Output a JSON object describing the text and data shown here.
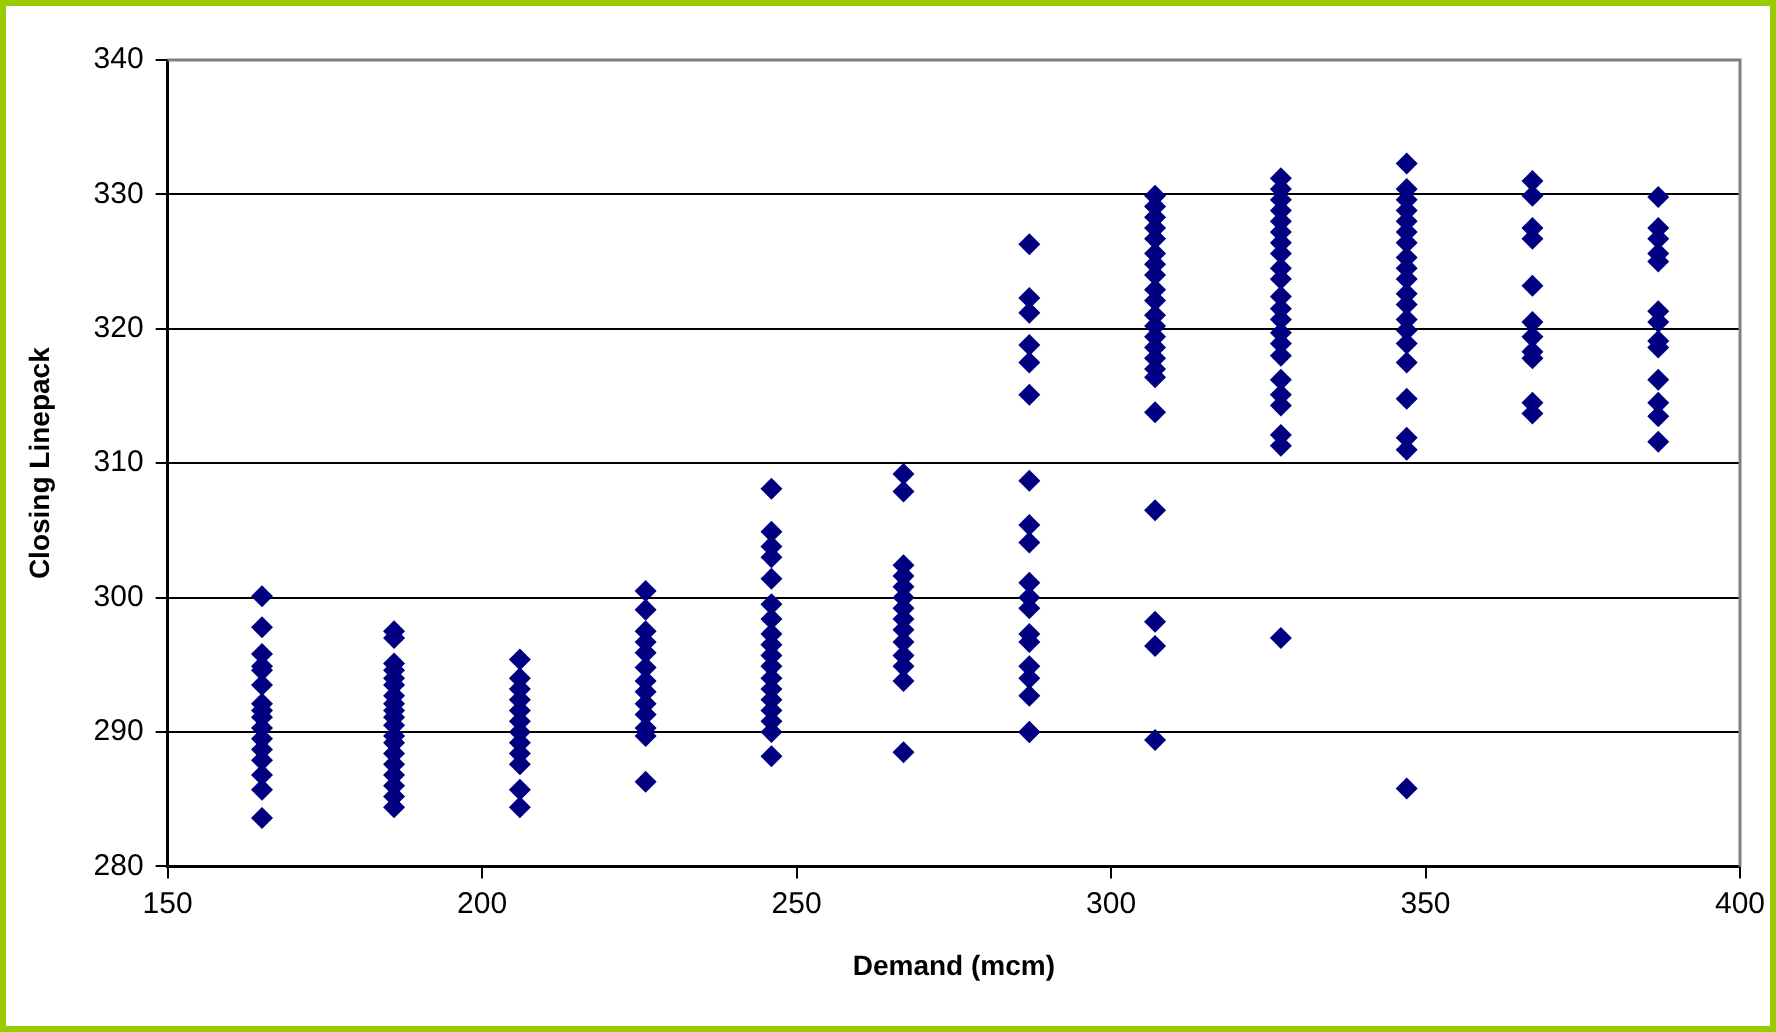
{
  "chart_data": {
    "type": "scatter",
    "xlabel": "Demand (mcm)",
    "ylabel": "Closing Linepack",
    "xlim": [
      150,
      400
    ],
    "xticks": [
      150,
      200,
      250,
      300,
      350,
      400
    ],
    "ylim": [
      280,
      340
    ],
    "yticks": [
      280,
      290,
      300,
      310,
      320,
      330,
      340
    ],
    "grid": "y",
    "legend": false,
    "marker": "diamond",
    "series": [
      {
        "color": "#000080",
        "x": [
          165,
          165,
          165,
          165,
          165,
          165,
          165,
          165,
          165,
          165,
          165,
          165,
          165,
          165,
          165,
          165,
          186,
          186,
          186,
          186,
          186,
          186,
          186,
          186,
          186,
          186,
          186,
          186,
          186,
          186,
          186,
          186,
          186,
          186,
          186,
          206,
          206,
          206,
          206,
          206,
          206,
          206,
          206,
          206,
          206,
          206,
          206,
          226,
          226,
          226,
          226,
          226,
          226,
          226,
          226,
          226,
          226,
          226,
          226,
          226,
          246,
          246,
          246,
          246,
          246,
          246,
          246,
          246,
          246,
          246,
          246,
          246,
          246,
          246,
          246,
          246,
          246,
          246,
          267,
          267,
          267,
          267,
          267,
          267,
          267,
          267,
          267,
          267,
          267,
          267,
          267,
          267,
          287,
          287,
          287,
          287,
          287,
          287,
          287,
          287,
          287,
          287,
          287,
          287,
          287,
          287,
          287,
          287,
          287,
          287,
          287,
          307,
          307,
          307,
          307,
          307,
          307,
          307,
          307,
          307,
          307,
          307,
          307,
          307,
          307,
          307,
          307,
          307,
          307,
          307,
          307,
          307,
          307,
          327,
          327,
          327,
          327,
          327,
          327,
          327,
          327,
          327,
          327,
          327,
          327,
          327,
          327,
          327,
          327,
          327,
          327,
          327,
          327,
          327,
          327,
          347,
          347,
          347,
          347,
          347,
          347,
          347,
          347,
          347,
          347,
          347,
          347,
          347,
          347,
          347,
          347,
          347,
          347,
          347,
          347,
          367,
          367,
          367,
          367,
          367,
          367,
          367,
          367,
          367,
          367,
          367,
          387,
          387,
          387,
          387,
          387,
          387,
          387,
          387,
          387,
          387,
          387,
          387,
          387
        ],
        "values": [
          300.1,
          297.8,
          295.8,
          294.9,
          294.6,
          293.5,
          292.1,
          291.6,
          291.1,
          290.3,
          289.5,
          288.7,
          287.9,
          286.8,
          285.7,
          283.6,
          297.5,
          297,
          295.1,
          294.6,
          294,
          293.5,
          292.7,
          292.1,
          291.6,
          291.1,
          290.5,
          289.7,
          289.2,
          288.4,
          287.6,
          286.8,
          286,
          285.2,
          284.4,
          295.4,
          294,
          293.2,
          292.4,
          291.6,
          290.8,
          290,
          289.2,
          288.4,
          287.6,
          285.7,
          284.4,
          300.5,
          299.1,
          297.5,
          296.7,
          295.9,
          294.8,
          293.8,
          293,
          292.1,
          291.3,
          290.3,
          289.7,
          286.3,
          308.1,
          304.9,
          303.8,
          303,
          301.4,
          299.5,
          298.4,
          297.3,
          296.5,
          295.7,
          294.9,
          294,
          293.2,
          292.4,
          291.6,
          290.8,
          290,
          288.2,
          309.2,
          307.9,
          302.4,
          301.6,
          300.8,
          300,
          299.2,
          298.4,
          297.6,
          296.7,
          295.7,
          294.9,
          293.8,
          288.5,
          326.3,
          322.3,
          321.2,
          318.8,
          317.5,
          315.1,
          308.7,
          305.4,
          304.1,
          301.1,
          300,
          299.2,
          297.3,
          296.7,
          294.9,
          294,
          292.7,
          290,
          290,
          329.9,
          329.1,
          328.3,
          327.5,
          326.7,
          325.6,
          324.8,
          324,
          322.9,
          322.1,
          321,
          320.2,
          319.4,
          318.6,
          317.8,
          317,
          316.4,
          313.8,
          306.5,
          298.2,
          296.4,
          289.4,
          331.2,
          330.4,
          329.6,
          328.8,
          328,
          327.2,
          326.4,
          325.6,
          324.5,
          323.7,
          322.4,
          321.5,
          320.7,
          319.7,
          318.9,
          318,
          316.2,
          315.1,
          314.3,
          312.1,
          311.3,
          297,
          332.3,
          330.4,
          329.6,
          328.8,
          328,
          327.2,
          326.4,
          325.3,
          324.5,
          323.7,
          322.6,
          321.8,
          320.7,
          319.9,
          318.9,
          317.5,
          314.8,
          311.9,
          311,
          285.8,
          331,
          329.9,
          327.5,
          326.7,
          323.2,
          320.5,
          319.4,
          318.3,
          317.8,
          314.5,
          313.7,
          329.8,
          327.5,
          326.7,
          325.6,
          325,
          321.3,
          320.5,
          319.1,
          318.6,
          316.2,
          314.5,
          313.5,
          311.6
        ]
      }
    ]
  }
}
